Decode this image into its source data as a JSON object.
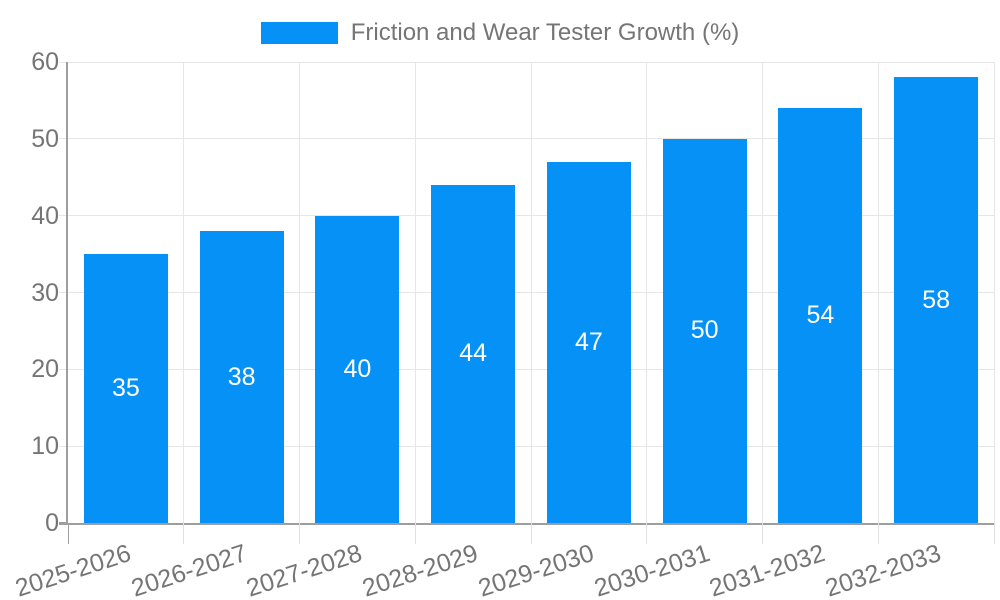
{
  "legend": {
    "label": "Friction and Wear Tester Growth (%)"
  },
  "colors": {
    "bar": "#0691f7",
    "grid": "#e6e6e6",
    "axis": "#9e9e9e",
    "tick_minor": "#e0e0e0",
    "tick_text": "#757575",
    "value_text": "#ffffff",
    "background": "#ffffff"
  },
  "chart_data": {
    "type": "bar",
    "title": "Friction and Wear Tester Growth (%)",
    "categories": [
      "2025-2026",
      "2026-2027",
      "2027-2028",
      "2028-2029",
      "2029-2030",
      "2030-2031",
      "2031-2032",
      "2032-2033"
    ],
    "values": [
      35,
      38,
      40,
      44,
      47,
      50,
      54,
      58
    ],
    "series": [
      {
        "name": "Friction and Wear Tester Growth (%)",
        "values": [
          35,
          38,
          40,
          44,
          47,
          50,
          54,
          58
        ]
      }
    ],
    "bar_value_labels": [
      "35",
      "38",
      "40",
      "44",
      "47",
      "50",
      "54",
      "58"
    ],
    "xlabel": "",
    "ylabel": "",
    "ylim": [
      0,
      60
    ],
    "yticks": [
      0,
      10,
      20,
      30,
      40,
      50,
      60
    ],
    "grid": true,
    "legend_position": "top",
    "x_tick_rotation_deg": -18
  }
}
